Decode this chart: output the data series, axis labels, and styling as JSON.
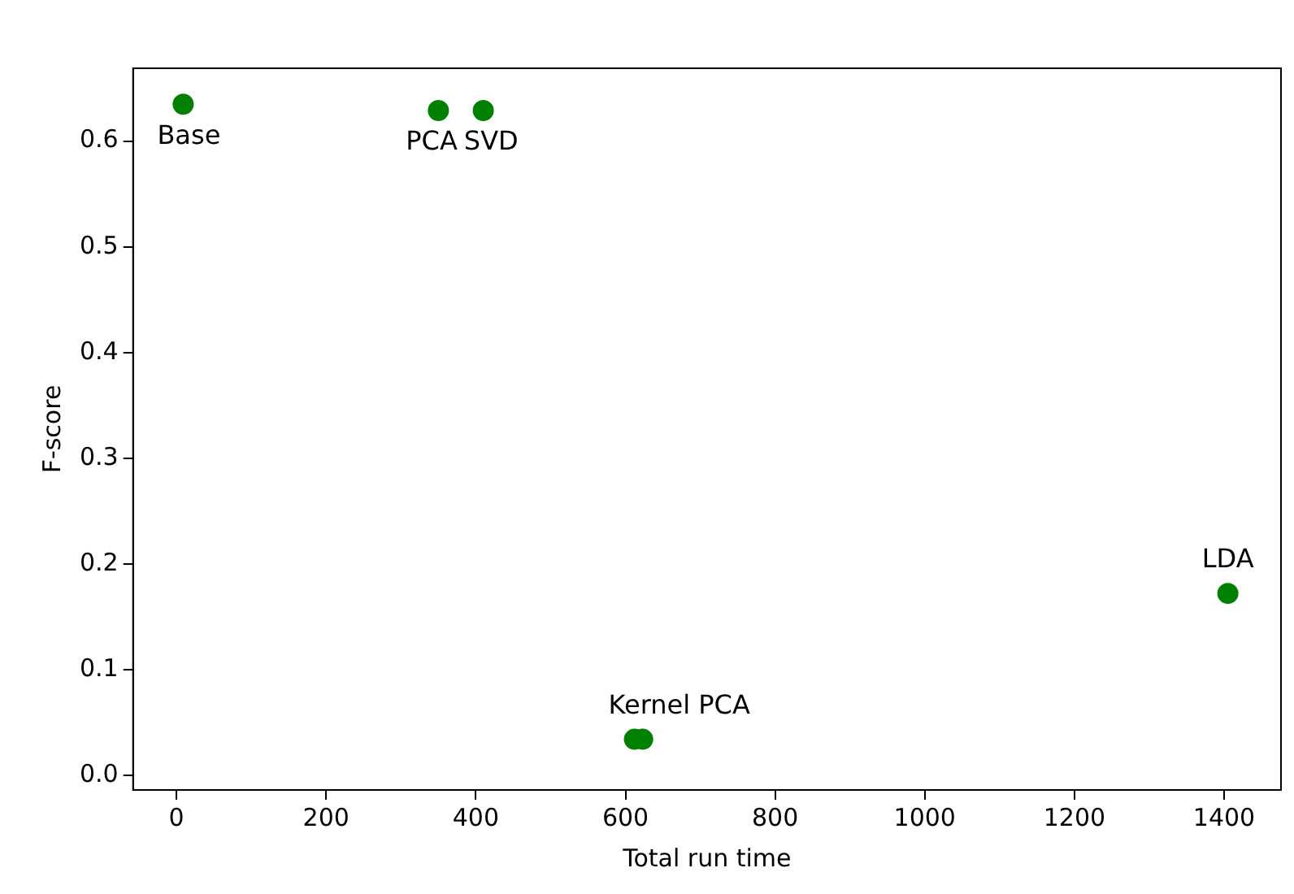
{
  "chart_data": {
    "type": "scatter",
    "xlabel": "Total run time",
    "ylabel": "F-score",
    "x": [
      9,
      350,
      410,
      612,
      623,
      1405
    ],
    "values": [
      0.635,
      0.629,
      0.629,
      0.034,
      0.034,
      0.172
    ],
    "color": "#008000",
    "xlim": [
      -58,
      1476
    ],
    "xticks": [
      0,
      200,
      400,
      600,
      800,
      1000,
      1200,
      1400
    ],
    "ylim": [
      -0.014,
      0.669
    ],
    "yticks": [
      {
        "value": 0,
        "label": "0.0"
      },
      0.1,
      0.2,
      0.3,
      0.4,
      0.5,
      0.6
    ],
    "annotations": [
      {
        "text": "Base",
        "x": 9,
        "y": 0.635
      },
      {
        "text": "PCA",
        "x": 350,
        "y": 0.629
      },
      {
        "text": "SVD",
        "x": 410,
        "y": 0.629
      },
      {
        "text": "Kernel PCA",
        "x": 612,
        "y": 0.034
      },
      {
        "text": "LDA",
        "x": 1405,
        "y": 0.172
      }
    ],
    "grid": false,
    "legend": false,
    "marker": "circle"
  }
}
